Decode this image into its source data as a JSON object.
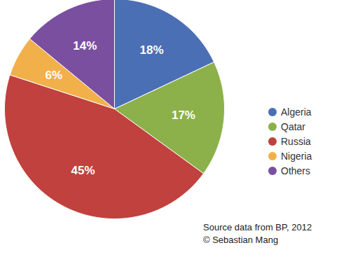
{
  "chart_data": {
    "type": "pie",
    "categories": [
      "Algeria",
      "Qatar",
      "Russia",
      "Nigeria",
      "Others"
    ],
    "values": [
      18,
      17,
      45,
      6,
      14
    ],
    "value_labels": [
      "18%",
      "17%",
      "45%",
      "6%",
      "14%"
    ],
    "colors": [
      "#4b6fb4",
      "#8cb14b",
      "#c0413d",
      "#f1b04a",
      "#7b4f9f"
    ],
    "data_labels": true,
    "legend": "right",
    "caption": "Source data from BP, 2012",
    "credit": "© Sebastian Mang"
  }
}
